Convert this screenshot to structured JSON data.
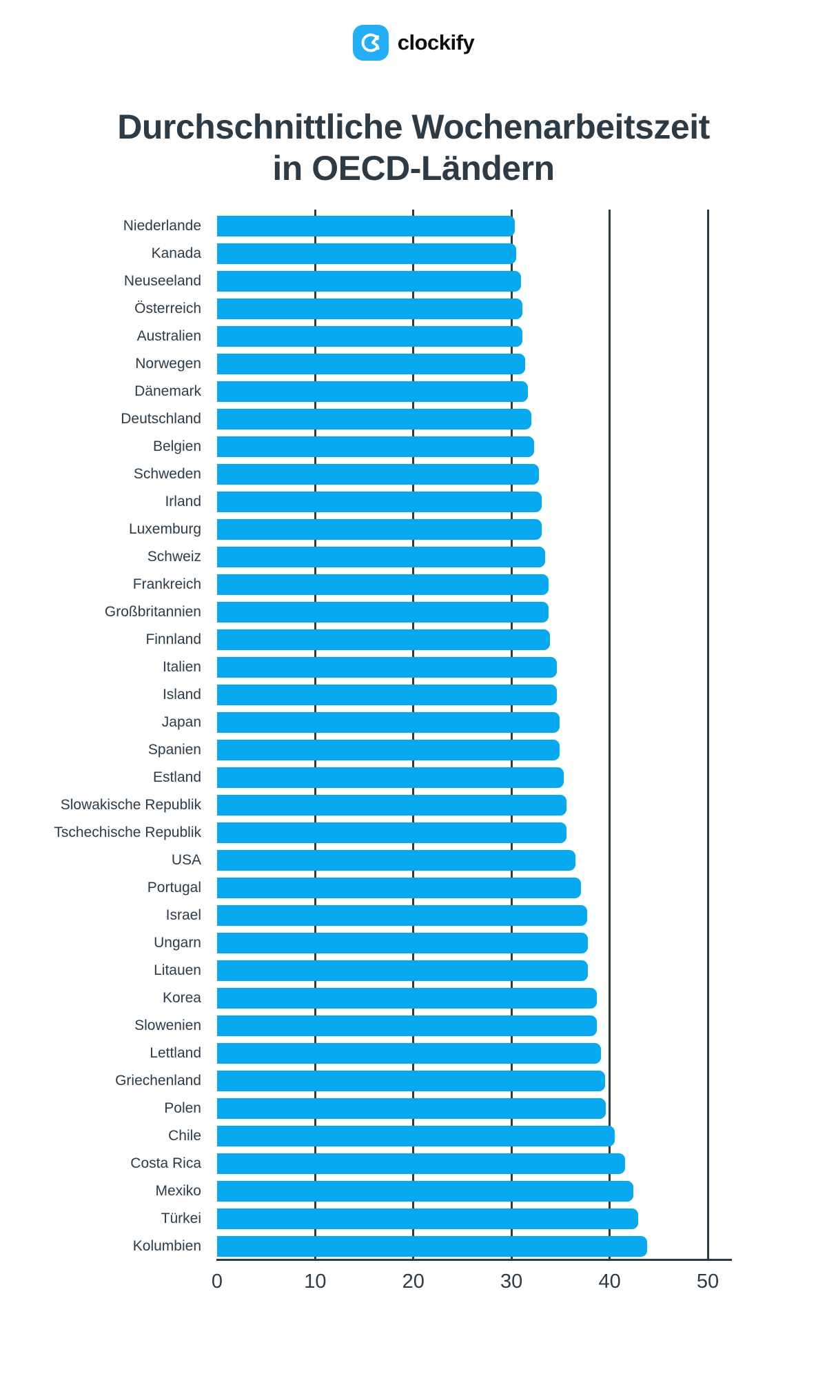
{
  "brand": {
    "name": "clockify",
    "icon": "clockify-clock-icon",
    "tile_color": "#24AEF6",
    "wordmark_color": "#0C0D0F"
  },
  "title": {
    "line1": "Durchschnittliche Wochenarbeitszeit",
    "line2": "in OECD-Ländern"
  },
  "chart_data": {
    "type": "bar",
    "orientation": "horizontal",
    "title": "Durchschnittliche Wochenarbeitszeit in OECD-Ländern",
    "xlabel": "",
    "ylabel": "",
    "xlim": [
      0,
      50
    ],
    "x_ticks": [
      0,
      10,
      20,
      30,
      40,
      50
    ],
    "grid": true,
    "bar_color": "#07AAF0",
    "axis_color": "#2D3B46",
    "categories": [
      "Niederlande",
      "Kanada",
      "Neuseeland",
      "Österreich",
      "Australien",
      "Norwegen",
      "Dänemark",
      "Deutschland",
      "Belgien",
      "Schweden",
      "Irland",
      "Luxemburg",
      "Schweiz",
      "Frankreich",
      "Großbritannien",
      "Finnland",
      "Italien",
      "Island",
      "Japan",
      "Spanien",
      "Estland",
      "Slowakische Republik",
      "Tschechische Republik",
      "USA",
      "Portugal",
      "Israel",
      "Ungarn",
      "Litauen",
      "Korea",
      "Slowenien",
      "Lettland",
      "Griechenland",
      "Polen",
      "Chile",
      "Costa Rica",
      "Mexiko",
      "Türkei",
      "Kolumbien"
    ],
    "values": [
      30.3,
      30.5,
      31.0,
      31.1,
      31.1,
      31.4,
      31.7,
      32.0,
      32.3,
      32.8,
      33.1,
      33.1,
      33.4,
      33.8,
      33.8,
      33.9,
      34.6,
      34.6,
      34.9,
      34.9,
      35.3,
      35.6,
      35.6,
      36.5,
      37.1,
      37.7,
      37.8,
      37.8,
      38.7,
      38.7,
      39.1,
      39.5,
      39.6,
      40.5,
      41.6,
      42.4,
      42.9,
      43.8
    ]
  }
}
